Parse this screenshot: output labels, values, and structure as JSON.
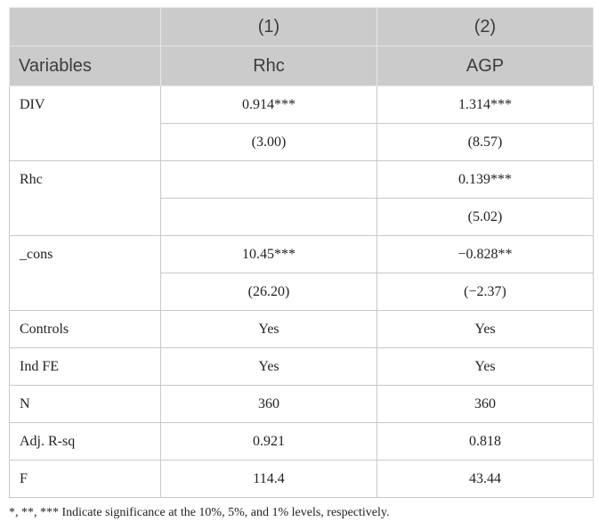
{
  "header": {
    "groups": [
      "(1)",
      "(2)"
    ],
    "columns": [
      "Variables",
      "Rhc",
      "AGP"
    ]
  },
  "rows": [
    {
      "label": "DIV",
      "cells": [
        [
          "0.914***",
          "1.314***"
        ],
        [
          "(3.00)",
          "(8.57)"
        ]
      ]
    },
    {
      "label": "Rhc",
      "cells": [
        [
          null,
          "0.139***"
        ],
        [
          null,
          "(5.02)"
        ]
      ]
    },
    {
      "label": "_cons",
      "cells": [
        [
          "10.45***",
          "−0.828**"
        ],
        [
          "(26.20)",
          "(−2.37)"
        ]
      ]
    },
    {
      "label": "Controls",
      "cells": [
        [
          "Yes",
          "Yes"
        ]
      ]
    },
    {
      "label": "Ind FE",
      "cells": [
        [
          "Yes",
          "Yes"
        ]
      ]
    },
    {
      "label": "N",
      "cells": [
        [
          "360",
          "360"
        ]
      ]
    },
    {
      "label": "Adj. R-sq",
      "cells": [
        [
          "0.921",
          "0.818"
        ]
      ]
    },
    {
      "label": "F",
      "cells": [
        [
          "114.4",
          "43.44"
        ]
      ]
    }
  ],
  "footnote": "*, **, *** Indicate significance at the 10%, 5%, and 1% levels, respectively."
}
